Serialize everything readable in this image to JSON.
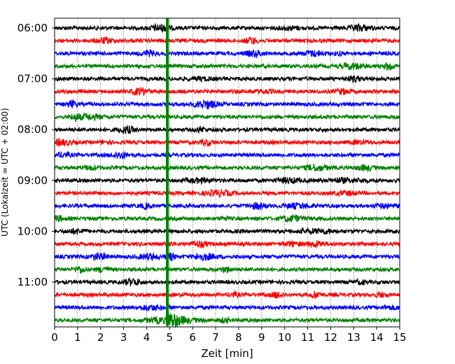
{
  "chart_data": {
    "type": "line",
    "title": "",
    "xlabel": "Zeit  [min]",
    "ylabel": "UTC (Lokalzeit = UTC + 02:00)",
    "xlim": [
      0,
      15
    ],
    "x_ticks": [
      "0",
      "1",
      "2",
      "3",
      "4",
      "5",
      "6",
      "7",
      "8",
      "9",
      "10",
      "11",
      "12",
      "13",
      "14",
      "15"
    ],
    "y_ticks": [
      "06:00",
      "07:00",
      "08:00",
      "09:00",
      "10:00",
      "11:00"
    ],
    "grid": "vertical dotted lines at each minute",
    "trace_interval_min": 15,
    "color_cycle": [
      "#000000",
      "#ff0000",
      "#0000ff",
      "#008000"
    ],
    "traces": [
      {
        "start": "06:00"
      },
      {
        "start": "06:15"
      },
      {
        "start": "06:30"
      },
      {
        "start": "06:45"
      },
      {
        "start": "07:00"
      },
      {
        "start": "07:15"
      },
      {
        "start": "07:30"
      },
      {
        "start": "07:45"
      },
      {
        "start": "08:00"
      },
      {
        "start": "08:15"
      },
      {
        "start": "08:30"
      },
      {
        "start": "08:45"
      },
      {
        "start": "09:00"
      },
      {
        "start": "09:15"
      },
      {
        "start": "09:30"
      },
      {
        "start": "09:45"
      },
      {
        "start": "10:00"
      },
      {
        "start": "10:15"
      },
      {
        "start": "10:30"
      },
      {
        "start": "10:45"
      },
      {
        "start": "11:00"
      },
      {
        "start": "11:15"
      },
      {
        "start": "11:30"
      },
      {
        "start": "11:45"
      }
    ],
    "events": [
      {
        "trace_start": "11:45",
        "time_min": 4.9,
        "description": "large amplitude event"
      }
    ]
  }
}
